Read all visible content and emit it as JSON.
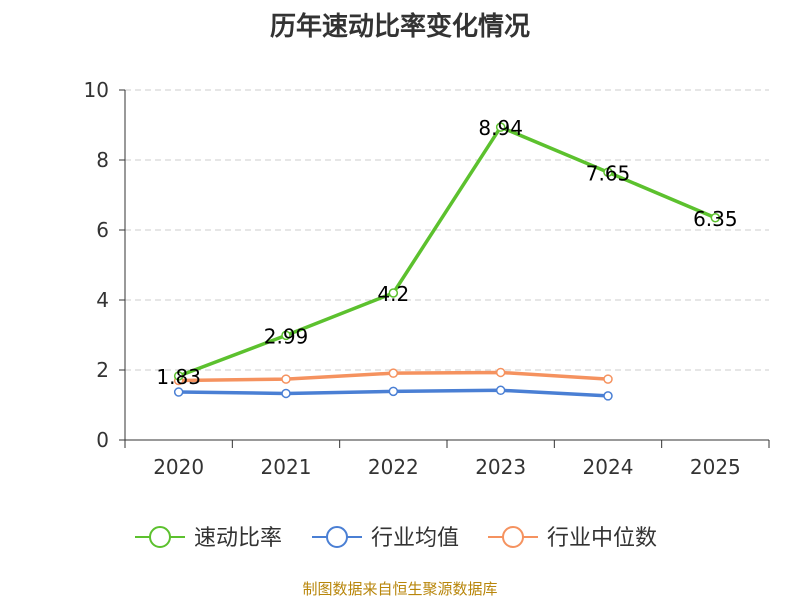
{
  "chart_data": {
    "type": "line",
    "title": "历年速动比率变化情况",
    "categories": [
      "2020",
      "2021",
      "2022",
      "2023",
      "2024",
      "2025"
    ],
    "ylim": [
      0,
      10
    ],
    "yticks": [
      0,
      2,
      4,
      6,
      8,
      10
    ],
    "grid": true,
    "legend_position": "bottom-center",
    "series": [
      {
        "name": "速动比率",
        "color": "#5cc12e",
        "values": [
          1.83,
          2.99,
          4.2,
          8.94,
          7.65,
          6.35
        ],
        "labels": [
          "1.83",
          "2.99",
          "4.2",
          "8.94",
          "7.65",
          "6.35"
        ]
      },
      {
        "name": "行业均值",
        "color": "#4a7fd4",
        "values": [
          1.37,
          1.33,
          1.39,
          1.42,
          1.26,
          null
        ]
      },
      {
        "name": "行业中位数",
        "color": "#f5925f",
        "values": [
          1.7,
          1.74,
          1.91,
          1.93,
          1.74,
          null
        ]
      }
    ]
  },
  "source": "制图数据来自恒生聚源数据库"
}
